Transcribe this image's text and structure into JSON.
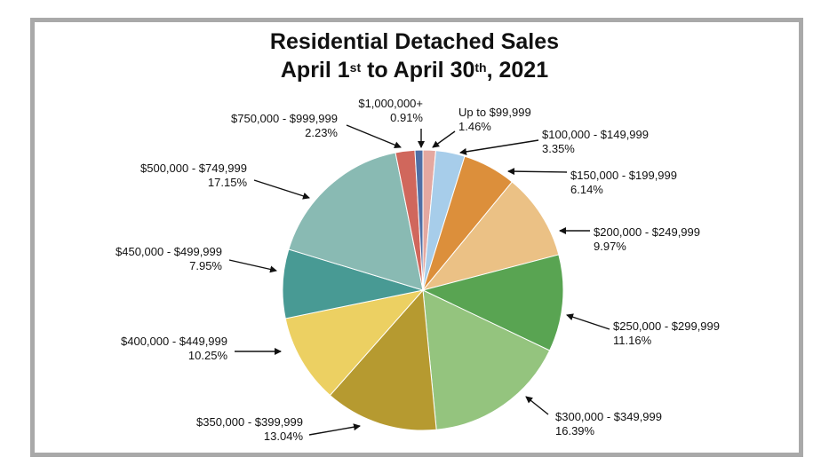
{
  "title": {
    "line1": "Residential Detached Sales",
    "line2_a": "April 1",
    "line2_sup1": "st",
    "line2_b": " to April 30",
    "line2_sup2": "th",
    "line2_c": ", 2021"
  },
  "chart_data": {
    "type": "pie",
    "title": "Residential Detached Sales April 1st to April 30th, 2021",
    "slices": [
      {
        "label": "Up to $99,999",
        "pct_label": "1.46%",
        "value": 1.46,
        "color": "#e4a8a0"
      },
      {
        "label": "$100,000 - $149,999",
        "pct_label": "3.35%",
        "value": 3.35,
        "color": "#a7cdea"
      },
      {
        "label": "$150,000 - $199,999",
        "pct_label": "6.14%",
        "value": 6.14,
        "color": "#dc8f3b"
      },
      {
        "label": "$200,000 - $249,999",
        "pct_label": "9.97%",
        "value": 9.97,
        "color": "#ebc185"
      },
      {
        "label": "$250,000 - $299,999",
        "pct_label": "11.16%",
        "value": 11.16,
        "color": "#59a452"
      },
      {
        "label": "$300,000 - $349,999",
        "pct_label": "16.39%",
        "value": 16.39,
        "color": "#94c47e"
      },
      {
        "label": "$350,000 - $399,999",
        "pct_label": "13.04%",
        "value": 13.04,
        "color": "#b69a30"
      },
      {
        "label": "$400,000 - $449,999",
        "pct_label": "10.25%",
        "value": 10.25,
        "color": "#ecd062"
      },
      {
        "label": "$450,000 - $499,999",
        "pct_label": "7.95%",
        "value": 7.95,
        "color": "#489a94"
      },
      {
        "label": "$500,000 - $749,999",
        "pct_label": "17.15%",
        "value": 17.15,
        "color": "#89bab3"
      },
      {
        "label": "$750,000 - $999,999",
        "pct_label": "2.23%",
        "value": 2.23,
        "color": "#d0675c"
      },
      {
        "label": "$1,000,000+",
        "pct_label": "0.91%",
        "value": 0.91,
        "color": "#4f6fa5"
      }
    ]
  }
}
